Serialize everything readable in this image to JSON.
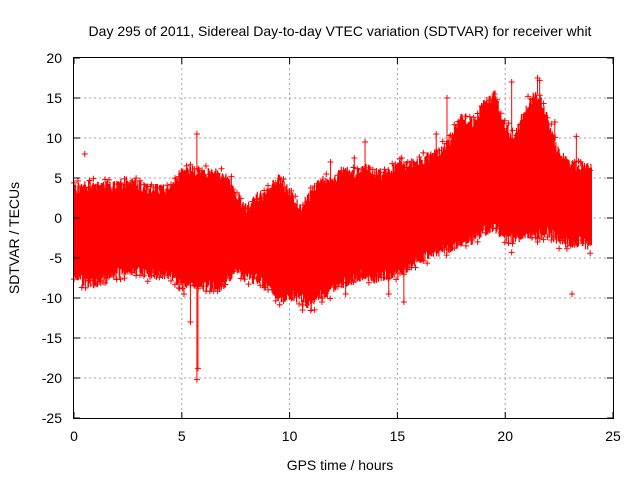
{
  "chart_data": {
    "type": "scatter",
    "title": "Day 295 of 2011, Sidereal Day-to-day VTEC variation (SDTVAR) for receiver whit",
    "xlabel": "GPS time / hours",
    "ylabel": "SDTVAR / TECUs",
    "xlim": [
      0,
      25
    ],
    "ylim": [
      -25,
      20
    ],
    "xticks": [
      0,
      5,
      10,
      15,
      20,
      25
    ],
    "yticks": [
      -25,
      -20,
      -15,
      -10,
      -5,
      0,
      5,
      10,
      15,
      20
    ],
    "grid": true,
    "series": [
      {
        "name": "SDTVAR",
        "color": "#ff0000",
        "marker": "+",
        "envelope": {
          "x": [
            0.0,
            0.5,
            1.0,
            1.5,
            2.0,
            2.5,
            3.0,
            3.5,
            4.0,
            4.5,
            4.8,
            5.0,
            5.5,
            6.0,
            6.5,
            7.0,
            7.5,
            8.0,
            8.5,
            9.0,
            9.5,
            10.0,
            10.5,
            11.0,
            11.5,
            12.0,
            12.5,
            13.0,
            13.5,
            14.0,
            14.5,
            15.0,
            15.5,
            16.0,
            16.5,
            17.0,
            17.5,
            18.0,
            18.5,
            19.0,
            19.5,
            20.0,
            20.5,
            21.0,
            21.5,
            22.0,
            22.5,
            23.0,
            23.5,
            24.0
          ],
          "upper": [
            3.5,
            4.0,
            4.0,
            4.0,
            4.0,
            4.5,
            4.0,
            3.5,
            3.5,
            3.5,
            5.0,
            5.5,
            5.8,
            5.5,
            5.5,
            5.0,
            3.0,
            1.0,
            2.5,
            3.0,
            5.0,
            3.0,
            1.0,
            3.0,
            4.5,
            4.5,
            6.0,
            5.5,
            6.0,
            5.5,
            5.5,
            6.5,
            6.5,
            7.0,
            7.5,
            8.5,
            10.0,
            12.5,
            12.0,
            14.0,
            15.5,
            11.0,
            10.5,
            14.0,
            15.5,
            12.0,
            8.0,
            6.5,
            6.5,
            6.0
          ],
          "lower": [
            -7.0,
            -8.0,
            -8.0,
            -7.5,
            -7.0,
            -6.5,
            -6.5,
            -7.0,
            -7.0,
            -7.0,
            -8.0,
            -8.5,
            -8.0,
            -8.5,
            -8.5,
            -8.5,
            -6.0,
            -7.5,
            -7.5,
            -8.5,
            -10.0,
            -9.5,
            -10.0,
            -11.0,
            -9.5,
            -9.0,
            -8.0,
            -7.5,
            -7.0,
            -7.5,
            -7.0,
            -7.0,
            -6.0,
            -5.0,
            -4.5,
            -4.0,
            -3.5,
            -3.0,
            -2.5,
            -1.5,
            -1.0,
            -2.5,
            -2.5,
            -2.0,
            -2.0,
            -1.5,
            -3.0,
            -3.0,
            -3.0,
            -3.5
          ]
        },
        "spikes": [
          {
            "x": 0.5,
            "y": 8.0
          },
          {
            "x": 4.9,
            "y": -8.8
          },
          {
            "x": 5.1,
            "y": -9.5
          },
          {
            "x": 5.4,
            "y": -13.0
          },
          {
            "x": 5.7,
            "y": 10.5
          },
          {
            "x": 5.7,
            "y": -20.2
          },
          {
            "x": 5.75,
            "y": -18.8
          },
          {
            "x": 7.3,
            "y": 5.2
          },
          {
            "x": 10.6,
            "y": -11.5
          },
          {
            "x": 11.5,
            "y": -10.5
          },
          {
            "x": 11.9,
            "y": 7.0
          },
          {
            "x": 12.6,
            "y": -9.5
          },
          {
            "x": 13.0,
            "y": 7.5
          },
          {
            "x": 13.5,
            "y": 9.5
          },
          {
            "x": 14.6,
            "y": -9.5
          },
          {
            "x": 15.3,
            "y": -10.5
          },
          {
            "x": 15.2,
            "y": 7.5
          },
          {
            "x": 16.8,
            "y": 10.5
          },
          {
            "x": 17.3,
            "y": 15.0
          },
          {
            "x": 19.5,
            "y": 15.5
          },
          {
            "x": 20.3,
            "y": 17.0
          },
          {
            "x": 20.3,
            "y": -4.3
          },
          {
            "x": 21.5,
            "y": 17.5
          },
          {
            "x": 21.6,
            "y": 17.2
          },
          {
            "x": 21.5,
            "y": -3.0
          },
          {
            "x": 22.3,
            "y": 12.0
          },
          {
            "x": 22.8,
            "y": 7.0
          },
          {
            "x": 23.1,
            "y": -9.5
          },
          {
            "x": 23.3,
            "y": 10.2
          },
          {
            "x": 23.5,
            "y": 7.0
          }
        ]
      }
    ]
  }
}
